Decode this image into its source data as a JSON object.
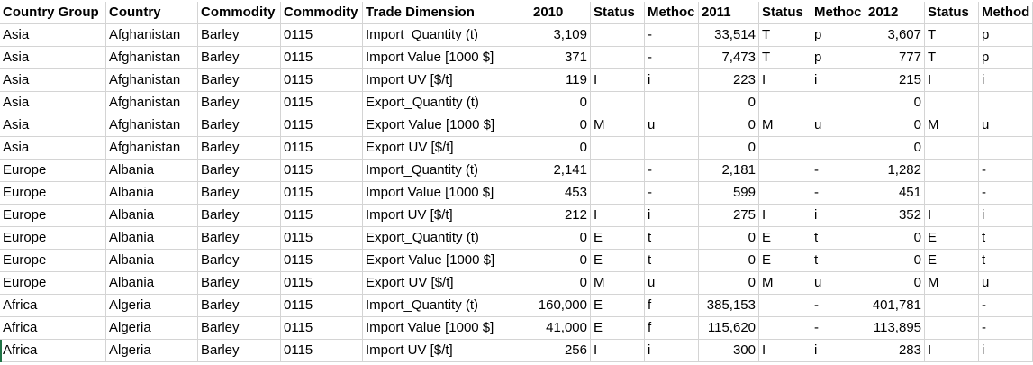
{
  "sheet": {
    "headers": [
      "Country Group",
      "Country",
      "Commodity",
      "Commodity",
      "Trade Dimension",
      "2010",
      "Status",
      "Methoc",
      "2011",
      "Status",
      "Methoc",
      "2012",
      "Status",
      "Method"
    ],
    "rows": [
      [
        "Asia",
        "Afghanistan",
        "Barley",
        "0115",
        "Import_Quantity (t)",
        "3,109",
        "",
        "-",
        "33,514",
        "T",
        "p",
        "3,607",
        "T",
        "p"
      ],
      [
        "Asia",
        "Afghanistan",
        "Barley",
        "0115",
        "Import Value [1000 $]",
        "371",
        "",
        "-",
        "7,473",
        "T",
        "p",
        "777",
        "T",
        "p"
      ],
      [
        "Asia",
        "Afghanistan",
        "Barley",
        "0115",
        "Import UV [$/t]",
        "119",
        "I",
        "i",
        "223",
        "I",
        "i",
        "215",
        "I",
        "i"
      ],
      [
        "Asia",
        "Afghanistan",
        "Barley",
        "0115",
        "Export_Quantity (t)",
        "0",
        "",
        "",
        "0",
        "",
        "",
        "0",
        "",
        ""
      ],
      [
        "Asia",
        "Afghanistan",
        "Barley",
        "0115",
        "Export Value [1000 $]",
        "0",
        "M",
        "u",
        "0",
        "M",
        "u",
        "0",
        "M",
        "u"
      ],
      [
        "Asia",
        "Afghanistan",
        "Barley",
        "0115",
        "Export UV [$/t]",
        "0",
        "",
        "",
        "0",
        "",
        "",
        "0",
        "",
        ""
      ],
      [
        "Europe",
        "Albania",
        "Barley",
        "0115",
        "Import_Quantity (t)",
        "2,141",
        "",
        "-",
        "2,181",
        "",
        "-",
        "1,282",
        "",
        "-"
      ],
      [
        "Europe",
        "Albania",
        "Barley",
        "0115",
        "Import Value [1000 $]",
        "453",
        "",
        "-",
        "599",
        "",
        "-",
        "451",
        "",
        "-"
      ],
      [
        "Europe",
        "Albania",
        "Barley",
        "0115",
        "Import UV [$/t]",
        "212",
        "I",
        "i",
        "275",
        "I",
        "i",
        "352",
        "I",
        "i"
      ],
      [
        "Europe",
        "Albania",
        "Barley",
        "0115",
        "Export_Quantity (t)",
        "0",
        "E",
        "t",
        "0",
        "E",
        "t",
        "0",
        "E",
        "t"
      ],
      [
        "Europe",
        "Albania",
        "Barley",
        "0115",
        "Export Value [1000 $]",
        "0",
        "E",
        "t",
        "0",
        "E",
        "t",
        "0",
        "E",
        "t"
      ],
      [
        "Europe",
        "Albania",
        "Barley",
        "0115",
        "Export UV [$/t]",
        "0",
        "M",
        "u",
        "0",
        "M",
        "u",
        "0",
        "M",
        "u"
      ],
      [
        "Africa",
        "Algeria",
        "Barley",
        "0115",
        "Import_Quantity (t)",
        "160,000",
        "E",
        "f",
        "385,153",
        "",
        "-",
        "401,781",
        "",
        "-"
      ],
      [
        "Africa",
        "Algeria",
        "Barley",
        "0115",
        "Import Value [1000 $]",
        "41,000",
        "E",
        "f",
        "115,620",
        "",
        "-",
        "113,895",
        "",
        "-"
      ],
      [
        "Africa",
        "Algeria",
        "Barley",
        "0115",
        "Import UV [$/t]",
        "256",
        "I",
        "i",
        "300",
        "I",
        "i",
        "283",
        "I",
        "i"
      ]
    ]
  },
  "colors": {
    "gridline": "#d4d4d4",
    "active_cell": "#217346",
    "text": "#000000"
  }
}
